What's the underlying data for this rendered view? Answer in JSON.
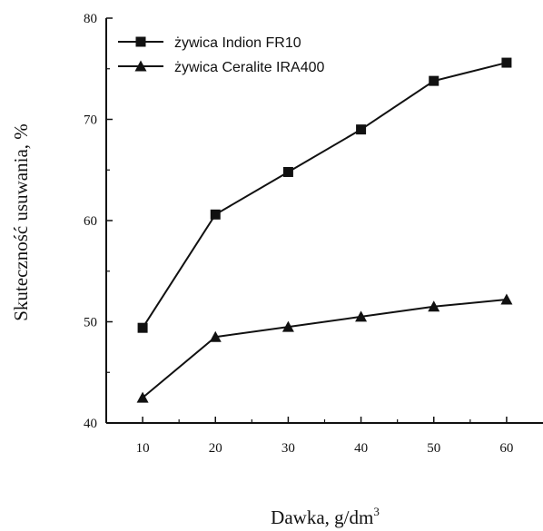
{
  "chart_data": {
    "type": "line",
    "title": "",
    "xlabel_main": "Dawka,  g/dm",
    "xlabel_sup": "3",
    "ylabel": "Skuteczność usuwania, %",
    "xlim": [
      5,
      65
    ],
    "ylim": [
      40,
      80
    ],
    "x_ticks": [
      "10",
      "20",
      "30",
      "40",
      "50",
      "60"
    ],
    "y_ticks": [
      "40",
      "50",
      "60",
      "70",
      "80"
    ],
    "grid": false,
    "legend_position": "top-left",
    "series": [
      {
        "name": "żywica Indion FR10",
        "marker": "square",
        "color": "#111111",
        "x": [
          10,
          20,
          30,
          40,
          50,
          60
        ],
        "y": [
          49.4,
          60.6,
          64.8,
          69.0,
          73.8,
          75.6
        ]
      },
      {
        "name": "żywica Ceralite IRA400",
        "marker": "triangle",
        "color": "#111111",
        "x": [
          10,
          20,
          30,
          40,
          50,
          60
        ],
        "y": [
          42.5,
          48.5,
          49.5,
          50.5,
          51.5,
          52.2
        ]
      }
    ]
  }
}
